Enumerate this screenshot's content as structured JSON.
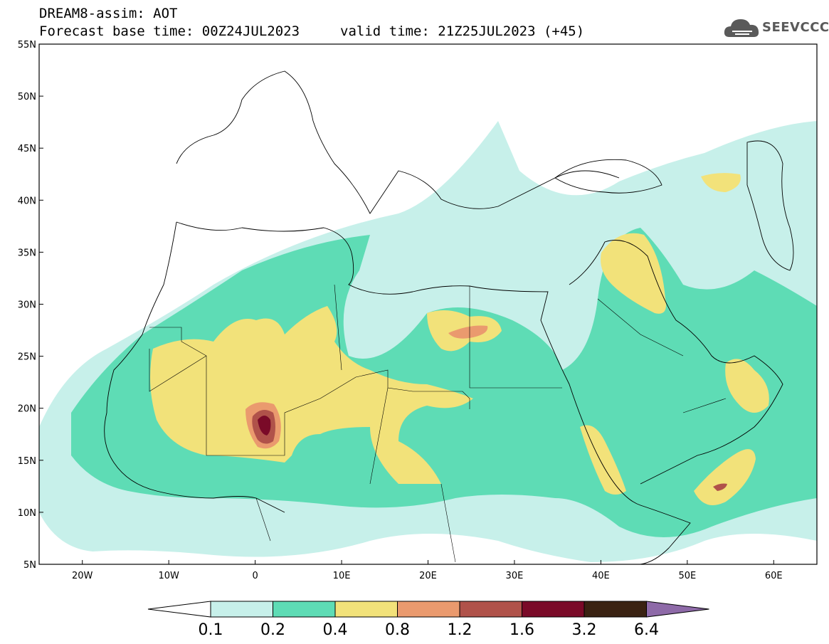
{
  "header": {
    "title": "DREAM8-assim: AOT",
    "base_time": "Forecast base time: 00Z24JUL2023",
    "valid_time": "valid time: 21Z25JUL2023 (+45)",
    "logo_text": "SEEVCCC",
    "logo_icon": "cloud-icon"
  },
  "map": {
    "lat_labels": [
      "55N",
      "50N",
      "45N",
      "40N",
      "35N",
      "30N",
      "25N",
      "20N",
      "15N",
      "10N",
      "5N"
    ],
    "lon_labels": [
      "20W",
      "10W",
      "0",
      "10E",
      "20E",
      "30E",
      "40E",
      "50E",
      "60E"
    ],
    "lat_range": [
      5,
      55
    ],
    "lon_range": [
      -25,
      65
    ]
  },
  "colorbar": {
    "labels": [
      "0.1",
      "0.2",
      "0.4",
      "0.8",
      "1.2",
      "1.6",
      "3.2",
      "6.4"
    ],
    "colors": [
      "#ffffff",
      "#c7f0ea",
      "#5edcb5",
      "#f2e27a",
      "#ea9a6e",
      "#b0524a",
      "#7a0a28",
      "#3a2212",
      "#8e6aa8"
    ]
  },
  "fill_colors": {
    "c01": "#c7f0ea",
    "c02": "#5edcb5",
    "c04": "#f2e27a",
    "c08": "#ea9a6e",
    "c12": "#b0524a",
    "c16": "#7a0a28"
  }
}
